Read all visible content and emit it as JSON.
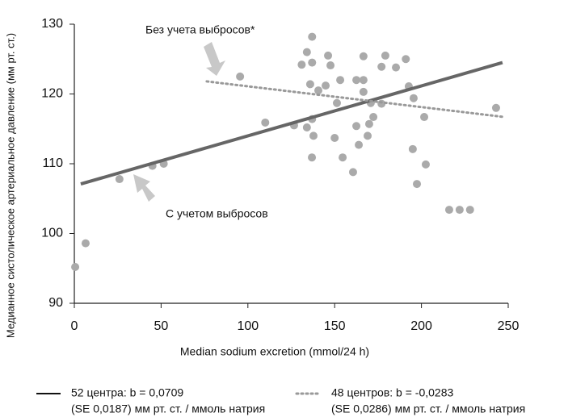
{
  "chart_data": {
    "type": "scatter",
    "y_label": "Медианное систолическое артериальное давление (мм рт. ст.)",
    "x_label": "Median sodium excretion (mmol/24 h)",
    "xlim": [
      0,
      250
    ],
    "xticks": [
      0,
      50,
      100,
      150,
      200,
      250
    ],
    "ylim": [
      90,
      130
    ],
    "yticks": [
      90,
      100,
      110,
      120,
      130
    ],
    "annotations": [
      "Без учета выбросов*",
      "С учетом выбросов"
    ],
    "series": [
      {
        "color": "#aaaaaa",
        "x": [
          0.5,
          6.5,
          26,
          45,
          51.5,
          95.5,
          110,
          126.6,
          131,
          134,
          137,
          137,
          135.9,
          134,
          137,
          137.8,
          136.9,
          140.6,
          144.8,
          146.2,
          147.6,
          150,
          151.3,
          153.2,
          154.6,
          160.6,
          162.5,
          162.5,
          163.9,
          166.6,
          166.6,
          166.6,
          169,
          169.9,
          170.8,
          172.3,
          177,
          177,
          179.2,
          185.3,
          191,
          192.7,
          195.5,
          195,
          197.4,
          201.6,
          202.5,
          216,
          222,
          228,
          243
        ],
        "values": [
          95.2,
          98.6,
          107.8,
          109.7,
          110,
          122.5,
          115.9,
          115.5,
          124.2,
          126,
          128.2,
          124.5,
          121.4,
          115.2,
          116.4,
          114,
          110.9,
          120.5,
          121.2,
          125.5,
          124.1,
          113.7,
          118.7,
          122,
          110.9,
          108.8,
          122,
          115.4,
          112.7,
          125.4,
          122,
          120.3,
          114,
          115.7,
          118.7,
          116.7,
          118.6,
          123.9,
          125.5,
          123.8,
          125,
          121.1,
          119.4,
          112.1,
          107.1,
          116.7,
          109.9,
          103.4,
          103.4,
          103.4,
          118
        ]
      }
    ],
    "lines": [
      {
        "name": "52 центра: b = 0,0709",
        "detail": "(SE 0,0187) мм рт. ст. / ммоль натрия",
        "color": "#666666",
        "dashed": false,
        "x": [
          3.7,
          246.7
        ],
        "values": [
          107.1,
          124.5
        ]
      },
      {
        "name": "48 центров: b = -0,0283",
        "detail": "(SE 0,0286) мм рт. ст. / ммоль натрия",
        "color": "#999999",
        "dashed": true,
        "x": [
          76.3,
          247.7
        ],
        "values": [
          121.8,
          116.7
        ]
      }
    ]
  }
}
